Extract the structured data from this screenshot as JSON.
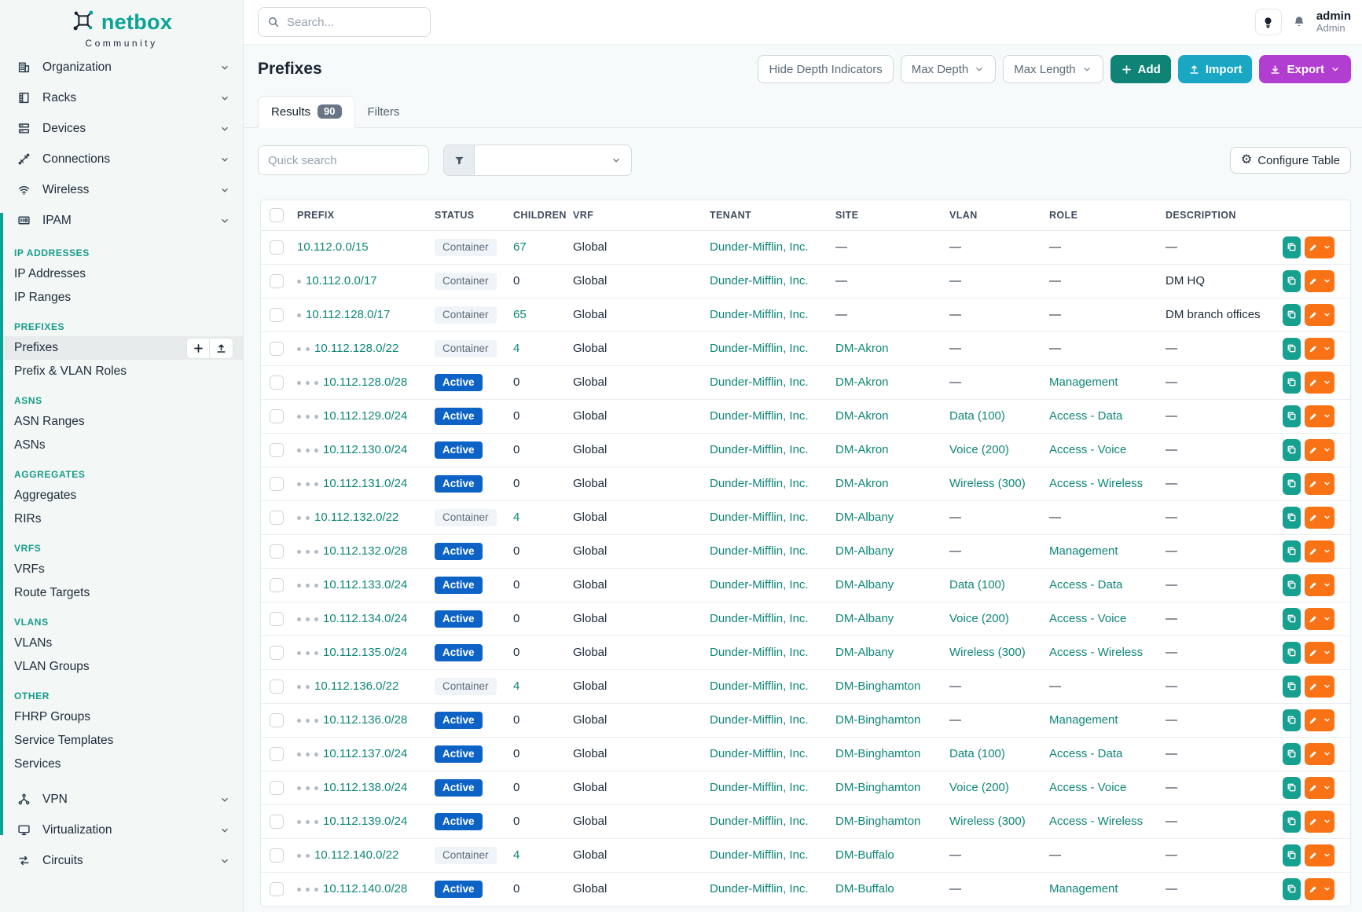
{
  "brand": {
    "name": "netbox",
    "subtitle": "Community"
  },
  "colors": {
    "brand": "#0aa396",
    "link": "#0e8678",
    "hdr_teal": "#189b8a",
    "badge_active": "#0d63c5",
    "badge_count": "#6a7686",
    "add": "#0e8376",
    "import": "#1aa7c3",
    "export": "#b23ed1",
    "clone": "#16a08f",
    "edit": "#f97316"
  },
  "sidebar": {
    "top_items": [
      {
        "label": "Organization",
        "icon": "organization-icon"
      },
      {
        "label": "Racks",
        "icon": "racks-icon"
      },
      {
        "label": "Devices",
        "icon": "devices-icon"
      },
      {
        "label": "Connections",
        "icon": "connections-icon"
      },
      {
        "label": "Wireless",
        "icon": "wireless-icon"
      },
      {
        "label": "IPAM",
        "icon": "ipam-icon"
      }
    ],
    "sections": [
      {
        "header": "IP ADDRESSES",
        "items": [
          {
            "label": "IP Addresses"
          },
          {
            "label": "IP Ranges"
          }
        ]
      },
      {
        "header": "PREFIXES",
        "items": [
          {
            "label": "Prefixes",
            "active": true
          },
          {
            "label": "Prefix & VLAN Roles"
          }
        ]
      },
      {
        "header": "ASNS",
        "items": [
          {
            "label": "ASN Ranges"
          },
          {
            "label": "ASNs"
          }
        ]
      },
      {
        "header": "AGGREGATES",
        "items": [
          {
            "label": "Aggregates"
          },
          {
            "label": "RIRs"
          }
        ]
      },
      {
        "header": "VRFS",
        "items": [
          {
            "label": "VRFs"
          },
          {
            "label": "Route Targets"
          }
        ]
      },
      {
        "header": "VLANS",
        "items": [
          {
            "label": "VLANs"
          },
          {
            "label": "VLAN Groups"
          }
        ]
      },
      {
        "header": "OTHER",
        "items": [
          {
            "label": "FHRP Groups"
          },
          {
            "label": "Service Templates"
          },
          {
            "label": "Services"
          }
        ]
      }
    ],
    "bottom_items": [
      {
        "label": "VPN",
        "icon": "vpn-icon"
      },
      {
        "label": "Virtualization",
        "icon": "virtualization-icon"
      },
      {
        "label": "Circuits",
        "icon": "circuits-icon"
      }
    ]
  },
  "topbar": {
    "search_placeholder": "Search...",
    "user": {
      "name": "admin",
      "role": "Admin"
    }
  },
  "page": {
    "title": "Prefixes",
    "header_buttons": [
      {
        "label": "Hide Depth Indicators",
        "kind": "outline"
      },
      {
        "label": "Max Depth",
        "kind": "outline",
        "chevron": true
      },
      {
        "label": "Max Length",
        "kind": "outline",
        "chevron": true
      },
      {
        "label": "Add",
        "kind": "teal",
        "icon": "plus"
      },
      {
        "label": "Import",
        "kind": "cyan",
        "icon": "upload"
      },
      {
        "label": "Export",
        "kind": "purple",
        "icon": "download",
        "chevron": true
      }
    ],
    "tabs": {
      "results_label": "Results",
      "results_badge": "90",
      "filters_label": "Filters"
    },
    "quick_search_placeholder": "Quick search",
    "configure_table_label": "Configure Table"
  },
  "table": {
    "columns": [
      "PREFIX",
      "STATUS",
      "CHILDREN",
      "VRF",
      "TENANT",
      "SITE",
      "VLAN",
      "ROLE",
      "DESCRIPTION"
    ],
    "rows": [
      {
        "prefix": "10.112.0.0/15",
        "depth": 0,
        "status": "Container",
        "children": "67",
        "vrf": "Global",
        "tenant": "Dunder-Mifflin, Inc.",
        "site": "—",
        "vlan": "—",
        "role": "—",
        "description": "—"
      },
      {
        "prefix": "10.112.0.0/17",
        "depth": 1,
        "status": "Container",
        "children": "0",
        "vrf": "Global",
        "tenant": "Dunder-Mifflin, Inc.",
        "site": "—",
        "vlan": "—",
        "role": "—",
        "description": "DM HQ"
      },
      {
        "prefix": "10.112.128.0/17",
        "depth": 1,
        "status": "Container",
        "children": "65",
        "vrf": "Global",
        "tenant": "Dunder-Mifflin, Inc.",
        "site": "—",
        "vlan": "—",
        "role": "—",
        "description": "DM branch offices"
      },
      {
        "prefix": "10.112.128.0/22",
        "depth": 2,
        "status": "Container",
        "children": "4",
        "vrf": "Global",
        "tenant": "Dunder-Mifflin, Inc.",
        "site": "DM-Akron",
        "vlan": "—",
        "role": "—",
        "description": "—"
      },
      {
        "prefix": "10.112.128.0/28",
        "depth": 3,
        "status": "Active",
        "children": "0",
        "vrf": "Global",
        "tenant": "Dunder-Mifflin, Inc.",
        "site": "DM-Akron",
        "vlan": "—",
        "role": "Management",
        "description": "—"
      },
      {
        "prefix": "10.112.129.0/24",
        "depth": 3,
        "status": "Active",
        "children": "0",
        "vrf": "Global",
        "tenant": "Dunder-Mifflin, Inc.",
        "site": "DM-Akron",
        "vlan": "Data (100)",
        "role": "Access - Data",
        "description": "—"
      },
      {
        "prefix": "10.112.130.0/24",
        "depth": 3,
        "status": "Active",
        "children": "0",
        "vrf": "Global",
        "tenant": "Dunder-Mifflin, Inc.",
        "site": "DM-Akron",
        "vlan": "Voice (200)",
        "role": "Access - Voice",
        "description": "—"
      },
      {
        "prefix": "10.112.131.0/24",
        "depth": 3,
        "status": "Active",
        "children": "0",
        "vrf": "Global",
        "tenant": "Dunder-Mifflin, Inc.",
        "site": "DM-Akron",
        "vlan": "Wireless (300)",
        "role": "Access - Wireless",
        "description": "—"
      },
      {
        "prefix": "10.112.132.0/22",
        "depth": 2,
        "status": "Container",
        "children": "4",
        "vrf": "Global",
        "tenant": "Dunder-Mifflin, Inc.",
        "site": "DM-Albany",
        "vlan": "—",
        "role": "—",
        "description": "—"
      },
      {
        "prefix": "10.112.132.0/28",
        "depth": 3,
        "status": "Active",
        "children": "0",
        "vrf": "Global",
        "tenant": "Dunder-Mifflin, Inc.",
        "site": "DM-Albany",
        "vlan": "—",
        "role": "Management",
        "description": "—"
      },
      {
        "prefix": "10.112.133.0/24",
        "depth": 3,
        "status": "Active",
        "children": "0",
        "vrf": "Global",
        "tenant": "Dunder-Mifflin, Inc.",
        "site": "DM-Albany",
        "vlan": "Data (100)",
        "role": "Access - Data",
        "description": "—"
      },
      {
        "prefix": "10.112.134.0/24",
        "depth": 3,
        "status": "Active",
        "children": "0",
        "vrf": "Global",
        "tenant": "Dunder-Mifflin, Inc.",
        "site": "DM-Albany",
        "vlan": "Voice (200)",
        "role": "Access - Voice",
        "description": "—"
      },
      {
        "prefix": "10.112.135.0/24",
        "depth": 3,
        "status": "Active",
        "children": "0",
        "vrf": "Global",
        "tenant": "Dunder-Mifflin, Inc.",
        "site": "DM-Albany",
        "vlan": "Wireless (300)",
        "role": "Access - Wireless",
        "description": "—"
      },
      {
        "prefix": "10.112.136.0/22",
        "depth": 2,
        "status": "Container",
        "children": "4",
        "vrf": "Global",
        "tenant": "Dunder-Mifflin, Inc.",
        "site": "DM-Binghamton",
        "vlan": "—",
        "role": "—",
        "description": "—"
      },
      {
        "prefix": "10.112.136.0/28",
        "depth": 3,
        "status": "Active",
        "children": "0",
        "vrf": "Global",
        "tenant": "Dunder-Mifflin, Inc.",
        "site": "DM-Binghamton",
        "vlan": "—",
        "role": "Management",
        "description": "—"
      },
      {
        "prefix": "10.112.137.0/24",
        "depth": 3,
        "status": "Active",
        "children": "0",
        "vrf": "Global",
        "tenant": "Dunder-Mifflin, Inc.",
        "site": "DM-Binghamton",
        "vlan": "Data (100)",
        "role": "Access - Data",
        "description": "—"
      },
      {
        "prefix": "10.112.138.0/24",
        "depth": 3,
        "status": "Active",
        "children": "0",
        "vrf": "Global",
        "tenant": "Dunder-Mifflin, Inc.",
        "site": "DM-Binghamton",
        "vlan": "Voice (200)",
        "role": "Access - Voice",
        "description": "—"
      },
      {
        "prefix": "10.112.139.0/24",
        "depth": 3,
        "status": "Active",
        "children": "0",
        "vrf": "Global",
        "tenant": "Dunder-Mifflin, Inc.",
        "site": "DM-Binghamton",
        "vlan": "Wireless (300)",
        "role": "Access - Wireless",
        "description": "—"
      },
      {
        "prefix": "10.112.140.0/22",
        "depth": 2,
        "status": "Container",
        "children": "4",
        "vrf": "Global",
        "tenant": "Dunder-Mifflin, Inc.",
        "site": "DM-Buffalo",
        "vlan": "—",
        "role": "—",
        "description": "—"
      },
      {
        "prefix": "10.112.140.0/28",
        "depth": 3,
        "status": "Active",
        "children": "0",
        "vrf": "Global",
        "tenant": "Dunder-Mifflin, Inc.",
        "site": "DM-Buffalo",
        "vlan": "—",
        "role": "Management",
        "description": "—"
      }
    ]
  }
}
